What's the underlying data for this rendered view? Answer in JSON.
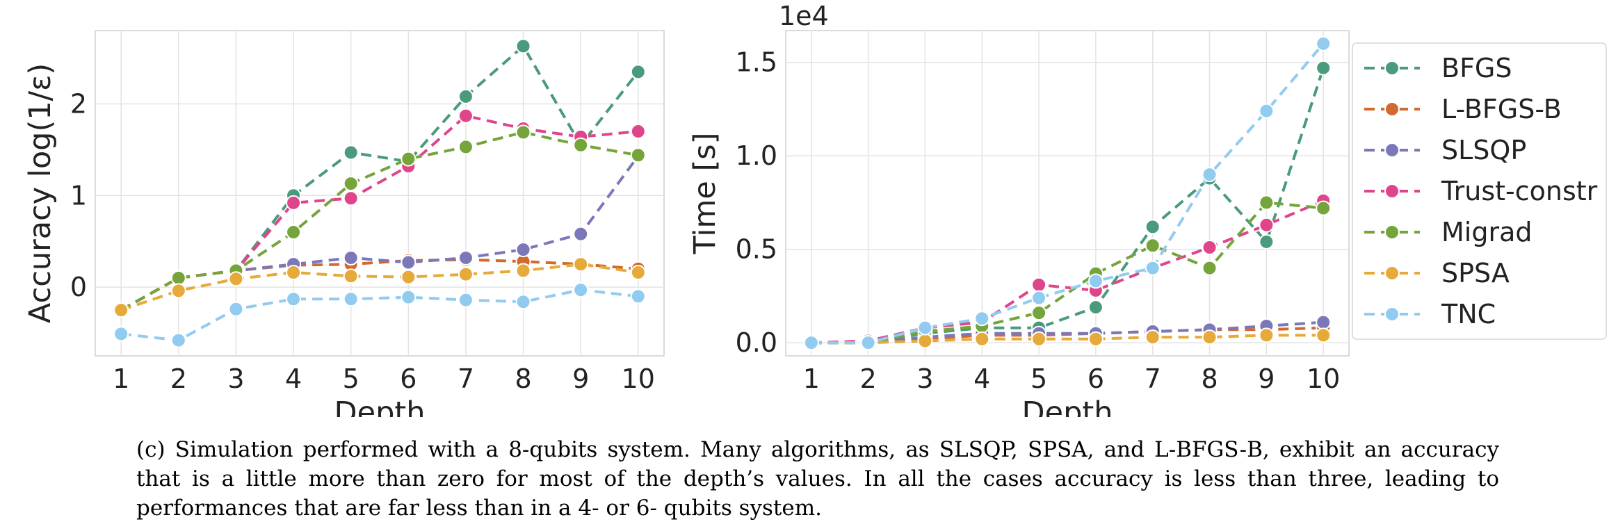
{
  "chart_data": [
    {
      "type": "line",
      "xlabel": "Depth",
      "ylabel": "Accuracy log(1/ε)",
      "x": [
        1,
        2,
        3,
        4,
        5,
        6,
        7,
        8,
        9,
        10
      ],
      "xlim": [
        0.55,
        10.45
      ],
      "ylim": [
        -0.75,
        2.8
      ],
      "yticks": [
        0,
        1,
        2
      ],
      "grid": true,
      "series": [
        {
          "name": "BFGS",
          "color": "#4a9a7c",
          "values": [
            -0.25,
            0.1,
            0.18,
            1.0,
            1.47,
            1.37,
            2.08,
            2.63,
            1.55,
            2.35
          ]
        },
        {
          "name": "L-BFGS-B",
          "color": "#d2692f",
          "values": [
            -0.25,
            0.1,
            0.18,
            0.24,
            0.25,
            0.29,
            0.3,
            0.28,
            0.25,
            0.2
          ]
        },
        {
          "name": "SLSQP",
          "color": "#7a78b8",
          "values": [
            -0.25,
            0.1,
            0.18,
            0.25,
            0.32,
            0.27,
            0.32,
            0.41,
            0.58,
            1.43
          ]
        },
        {
          "name": "Trust-constr",
          "color": "#e0458c",
          "values": [
            -0.25,
            0.1,
            0.18,
            0.92,
            0.97,
            1.32,
            1.87,
            1.73,
            1.64,
            1.7
          ]
        },
        {
          "name": "Migrad",
          "color": "#74a43a",
          "values": [
            -0.25,
            0.1,
            0.18,
            0.6,
            1.13,
            1.4,
            1.53,
            1.69,
            1.55,
            1.44
          ]
        },
        {
          "name": "SPSA",
          "color": "#e5aa3a",
          "values": [
            -0.25,
            -0.04,
            0.09,
            0.16,
            0.12,
            0.11,
            0.14,
            0.18,
            0.25,
            0.16
          ]
        },
        {
          "name": "TNC",
          "color": "#92cbf0",
          "values": [
            -0.51,
            -0.58,
            -0.24,
            -0.13,
            -0.13,
            -0.11,
            -0.14,
            -0.16,
            -0.03,
            -0.1
          ]
        }
      ]
    },
    {
      "type": "line",
      "xlabel": "Depth",
      "ylabel": "Time [s]",
      "offset_label": "1e4",
      "x": [
        1,
        2,
        3,
        4,
        5,
        6,
        7,
        8,
        9,
        10
      ],
      "xlim": [
        0.55,
        10.45
      ],
      "ylim": [
        -0.07,
        1.67
      ],
      "yticks": [
        0.0,
        0.5,
        1.0,
        1.5
      ],
      "grid": true,
      "legend": "outside-right",
      "series": [
        {
          "name": "BFGS",
          "color": "#4a9a7c",
          "values": [
            0.0,
            0.0,
            0.05,
            0.08,
            0.08,
            0.19,
            0.62,
            0.88,
            0.54,
            1.47
          ]
        },
        {
          "name": "L-BFGS-B",
          "color": "#d2692f",
          "values": [
            0.0,
            0.0,
            0.02,
            0.04,
            0.04,
            0.05,
            0.06,
            0.07,
            0.07,
            0.08
          ]
        },
        {
          "name": "SLSQP",
          "color": "#7a78b8",
          "values": [
            0.0,
            0.0,
            0.03,
            0.05,
            0.05,
            0.05,
            0.06,
            0.07,
            0.09,
            0.11
          ]
        },
        {
          "name": "Trust-constr",
          "color": "#e0458c",
          "values": [
            0.0,
            0.01,
            0.08,
            0.11,
            0.31,
            0.28,
            0.4,
            0.51,
            0.63,
            0.76
          ]
        },
        {
          "name": "Migrad",
          "color": "#74a43a",
          "values": [
            0.0,
            0.0,
            0.06,
            0.09,
            0.16,
            0.37,
            0.52,
            0.4,
            0.75,
            0.72
          ]
        },
        {
          "name": "SPSA",
          "color": "#e5aa3a",
          "values": [
            0.0,
            0.0,
            0.01,
            0.02,
            0.02,
            0.02,
            0.03,
            0.03,
            0.04,
            0.04
          ]
        },
        {
          "name": "TNC",
          "color": "#92cbf0",
          "values": [
            0.0,
            0.0,
            0.08,
            0.13,
            0.24,
            0.33,
            0.4,
            0.9,
            1.24,
            1.6
          ]
        }
      ]
    }
  ],
  "caption": "(c) Simulation performed with a 8-qubits system. Many algorithms, as SLSQP, SPSA, and L-BFGS-B, exhibit an accuracy that is a little more than zero for most of the depth’s values. In all the cases accuracy is less than three, leading to performances that are far less than in a 4- or 6- qubits system."
}
